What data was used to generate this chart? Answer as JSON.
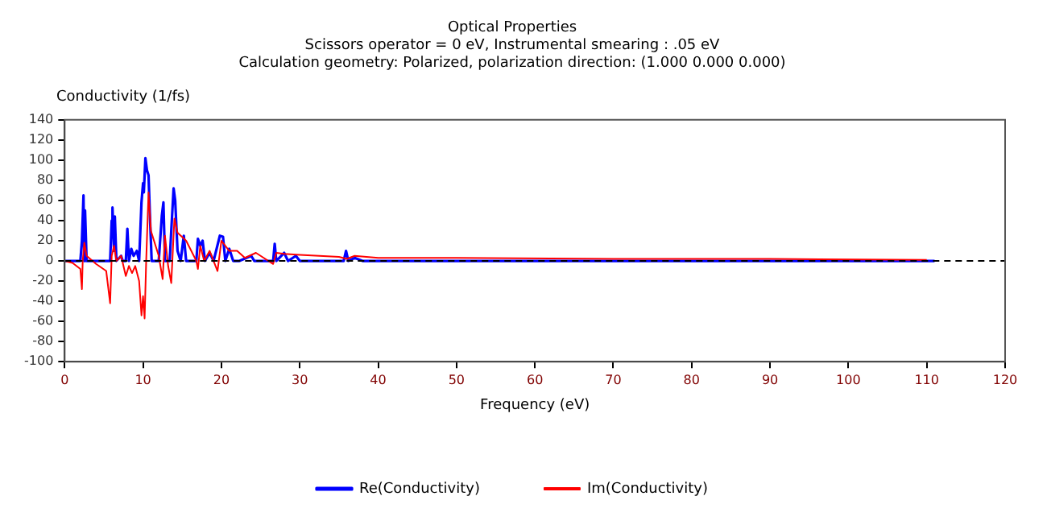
{
  "chart_data": {
    "type": "line",
    "title": "Optical Properties",
    "subtitle": "Scissors operator = 0 eV, Instrumental smearing : .05 eV\nCalculation geometry: Polarized, polarization direction: (1.000 0.000 0.000)",
    "xlabel": "Frequency (eV)",
    "ylabel": "Conductivity (1/fs)",
    "series": [
      {
        "name": "Re(Conductivity)",
        "color": "#0000ff",
        "x": [
          0,
          2.0,
          2.2,
          2.4,
          2.5,
          2.6,
          2.8,
          5.8,
          6.0,
          6.1,
          6.3,
          6.4,
          6.6,
          7.2,
          7.4,
          7.8,
          8.0,
          8.2,
          8.5,
          8.8,
          9.2,
          9.5,
          9.8,
          10.0,
          10.1,
          10.3,
          10.5,
          10.7,
          10.9,
          11.1,
          12.0,
          12.4,
          12.6,
          12.8,
          13.4,
          13.6,
          13.9,
          14.1,
          14.4,
          14.8,
          15.2,
          15.5,
          16.8,
          17.0,
          17.3,
          17.6,
          17.9,
          18.5,
          19.0,
          19.8,
          20.2,
          20.5,
          21.0,
          21.5,
          22.3,
          23.8,
          24.2,
          26.6,
          26.8,
          27.0,
          28,
          28.5,
          29.5,
          30,
          35.6,
          35.9,
          36.2,
          37,
          38,
          111
        ],
        "values": [
          0,
          0,
          20,
          65,
          0,
          50,
          0,
          0,
          40,
          53,
          10,
          44,
          0,
          5,
          0,
          0,
          32,
          0,
          12,
          5,
          10,
          0,
          58,
          77,
          68,
          102,
          90,
          85,
          40,
          0,
          0,
          45,
          58,
          0,
          0,
          30,
          72,
          60,
          10,
          0,
          25,
          0,
          0,
          22,
          15,
          20,
          0,
          8,
          0,
          25,
          24,
          0,
          12,
          0,
          0,
          5,
          0,
          0,
          17,
          0,
          8,
          0,
          5,
          0,
          0,
          10,
          0,
          3,
          0,
          0
        ]
      },
      {
        "name": "Im(Conductivity)",
        "color": "#ff0000",
        "x": [
          0,
          1,
          2.0,
          2.2,
          2.3,
          2.5,
          2.8,
          4,
          5.3,
          5.8,
          6.0,
          6.3,
          6.6,
          7.2,
          7.8,
          8.2,
          8.6,
          9.0,
          9.5,
          9.8,
          10.0,
          10.2,
          10.4,
          10.7,
          11.0,
          12.0,
          12.5,
          12.8,
          13.2,
          13.6,
          14.0,
          14.4,
          15.5,
          16.8,
          17,
          17.3,
          17.8,
          18.5,
          19.5,
          20,
          21,
          22,
          23,
          24.4,
          25,
          26.6,
          27,
          28,
          30,
          35,
          36,
          37,
          40,
          50,
          70,
          90,
          110
        ],
        "values": [
          0,
          -2,
          -8,
          -28,
          0,
          18,
          5,
          -3,
          -10,
          -42,
          5,
          15,
          0,
          5,
          -15,
          -5,
          -12,
          -5,
          -20,
          -54,
          -35,
          -57,
          0,
          68,
          30,
          5,
          -18,
          25,
          -5,
          -22,
          42,
          28,
          20,
          0,
          -8,
          15,
          0,
          10,
          -10,
          20,
          10,
          10,
          3,
          8,
          5,
          -3,
          8,
          7,
          6,
          4,
          2,
          5,
          3,
          3,
          2,
          2,
          1
        ]
      }
    ],
    "xlim": [
      0,
      120
    ],
    "xticks": [
      0,
      10,
      20,
      30,
      40,
      50,
      60,
      70,
      80,
      90,
      100,
      110,
      120
    ],
    "ylim": [
      -100,
      140
    ],
    "yticks": [
      -100,
      -80,
      -60,
      -40,
      -20,
      0,
      20,
      40,
      60,
      80,
      100,
      120,
      140
    ],
    "ref_lines": [
      {
        "axis": "y",
        "value": 0,
        "color": "#000000",
        "line_style": "dashed"
      }
    ],
    "legend": "bottom",
    "grid": false,
    "marker": "none",
    "line_style": "solid"
  }
}
